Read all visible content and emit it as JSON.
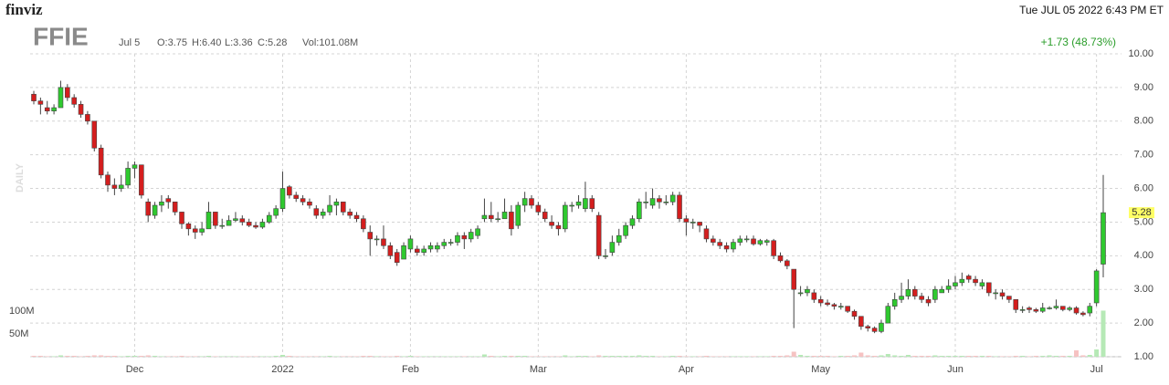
{
  "chart_data": {
    "type": "candlestick",
    "logo": "finviz",
    "ticker": "FFIE",
    "date_label": "Jul 5",
    "ohlc_labels": [
      "O:3.75",
      "H:6.40",
      "L:3.36",
      "C:5.28"
    ],
    "volume_label": "Vol:101.08M",
    "timestamp": "Tue JUL 05 2022 6:43 PM ET",
    "change_label": "+1.73 (48.73%)",
    "period_label": "DAILY",
    "up_color": "#2fc92f",
    "down_color": "#d41e1e",
    "volume_up_color": "#b6e9b6",
    "volume_down_color": "#f6c2c2",
    "grid": true,
    "ylim": [
      1,
      10
    ],
    "yticks": [
      {
        "value": 1,
        "label": "1.00"
      },
      {
        "value": 2,
        "label": "2.00"
      },
      {
        "value": 3,
        "label": "3.00"
      },
      {
        "value": 4,
        "label": "4.00"
      },
      {
        "value": 5,
        "label": "5.00"
      },
      {
        "value": 6,
        "label": "6.00"
      },
      {
        "value": 7,
        "label": "7.00"
      },
      {
        "value": 8,
        "label": "8.00"
      },
      {
        "value": 9,
        "label": "9.00"
      },
      {
        "value": 10,
        "label": "10.00"
      }
    ],
    "volume_ticks": [
      {
        "value": 50,
        "label": "50M"
      },
      {
        "value": 100,
        "label": "100M"
      }
    ],
    "categories": [
      null,
      null,
      null,
      null,
      null,
      null,
      null,
      null,
      null,
      null,
      null,
      null,
      null,
      null,
      null,
      "Dec",
      null,
      null,
      null,
      null,
      null,
      null,
      null,
      null,
      null,
      null,
      null,
      null,
      null,
      null,
      null,
      null,
      null,
      null,
      null,
      null,
      null,
      "2022",
      null,
      null,
      null,
      null,
      null,
      null,
      null,
      null,
      null,
      null,
      null,
      null,
      null,
      null,
      null,
      null,
      null,
      null,
      "Feb",
      null,
      null,
      null,
      null,
      null,
      null,
      null,
      null,
      null,
      null,
      null,
      null,
      null,
      null,
      null,
      null,
      null,
      null,
      "Mar",
      null,
      null,
      null,
      null,
      null,
      null,
      null,
      null,
      null,
      null,
      null,
      null,
      null,
      null,
      null,
      null,
      null,
      null,
      null,
      null,
      null,
      "Apr",
      null,
      null,
      null,
      null,
      null,
      null,
      null,
      null,
      null,
      null,
      null,
      null,
      null,
      null,
      null,
      null,
      null,
      null,
      null,
      "May",
      null,
      null,
      null,
      null,
      null,
      null,
      null,
      null,
      null,
      null,
      null,
      null,
      null,
      null,
      null,
      null,
      null,
      null,
      null,
      "Jun",
      null,
      null,
      null,
      null,
      null,
      null,
      null,
      null,
      null,
      null,
      null,
      null,
      null,
      null,
      null,
      null,
      null,
      null,
      null,
      null,
      "Jul",
      null
    ],
    "ohlc": [
      [
        8.8,
        8.9,
        8.5,
        8.6
      ],
      [
        8.6,
        8.7,
        8.2,
        8.5
      ],
      [
        8.4,
        8.6,
        8.2,
        8.3
      ],
      [
        8.3,
        8.5,
        8.2,
        8.4
      ],
      [
        8.4,
        9.2,
        8.4,
        9.0
      ],
      [
        9.0,
        9.1,
        8.6,
        8.7
      ],
      [
        8.7,
        8.8,
        8.4,
        8.5
      ],
      [
        8.5,
        8.6,
        8.1,
        8.2
      ],
      [
        8.2,
        8.3,
        7.9,
        8.0
      ],
      [
        8.0,
        8.0,
        7.1,
        7.2
      ],
      [
        7.2,
        7.3,
        6.3,
        6.4
      ],
      [
        6.4,
        6.5,
        5.9,
        6.1
      ],
      [
        6.1,
        6.3,
        5.8,
        6.0
      ],
      [
        6.0,
        6.4,
        5.9,
        6.1
      ],
      [
        6.1,
        6.8,
        6.0,
        6.6
      ],
      [
        6.6,
        6.8,
        6.3,
        6.7
      ],
      [
        6.7,
        6.7,
        5.7,
        5.8
      ],
      [
        5.6,
        5.7,
        5.0,
        5.2
      ],
      [
        5.2,
        5.6,
        5.1,
        5.5
      ],
      [
        5.5,
        5.8,
        5.3,
        5.6
      ],
      [
        5.7,
        5.8,
        5.4,
        5.6
      ],
      [
        5.6,
        5.6,
        5.2,
        5.3
      ],
      [
        5.3,
        5.3,
        4.8,
        4.95
      ],
      [
        4.95,
        5.0,
        4.6,
        4.8
      ],
      [
        4.8,
        4.9,
        4.5,
        4.7
      ],
      [
        4.7,
        5.0,
        4.6,
        4.8
      ],
      [
        4.8,
        5.6,
        4.8,
        5.3
      ],
      [
        5.3,
        5.3,
        4.8,
        4.9
      ],
      [
        4.9,
        5.1,
        4.8,
        4.9
      ],
      [
        4.9,
        5.2,
        4.9,
        5.05
      ],
      [
        5.05,
        5.3,
        5.0,
        5.1
      ],
      [
        5.1,
        5.2,
        4.9,
        5.0
      ],
      [
        5.0,
        5.1,
        4.85,
        4.9
      ],
      [
        4.9,
        5.0,
        4.8,
        4.85
      ],
      [
        4.85,
        5.1,
        4.8,
        5.0
      ],
      [
        5.0,
        5.3,
        4.95,
        5.2
      ],
      [
        5.2,
        5.5,
        5.1,
        5.4
      ],
      [
        5.4,
        6.5,
        5.3,
        6.0
      ],
      [
        6.05,
        6.1,
        5.7,
        5.8
      ],
      [
        5.8,
        5.9,
        5.6,
        5.7
      ],
      [
        5.7,
        5.8,
        5.5,
        5.6
      ],
      [
        5.6,
        5.7,
        5.4,
        5.5
      ],
      [
        5.4,
        5.5,
        5.1,
        5.2
      ],
      [
        5.2,
        5.4,
        5.1,
        5.3
      ],
      [
        5.3,
        5.8,
        5.2,
        5.5
      ],
      [
        5.5,
        5.7,
        5.2,
        5.6
      ],
      [
        5.6,
        5.6,
        5.2,
        5.3
      ],
      [
        5.3,
        5.4,
        5.1,
        5.2
      ],
      [
        5.2,
        5.3,
        5.0,
        5.1
      ],
      [
        5.1,
        5.2,
        4.7,
        4.8
      ],
      [
        4.7,
        4.9,
        4.0,
        4.5
      ],
      [
        4.5,
        4.6,
        4.3,
        4.5
      ],
      [
        4.5,
        4.9,
        4.2,
        4.3
      ],
      [
        4.3,
        4.4,
        3.9,
        4.0
      ],
      [
        4.1,
        4.2,
        3.7,
        3.8
      ],
      [
        3.9,
        4.4,
        3.9,
        4.3
      ],
      [
        4.2,
        4.6,
        4.1,
        4.5
      ],
      [
        4.2,
        4.3,
        4.0,
        4.1
      ],
      [
        4.1,
        4.3,
        4.0,
        4.2
      ],
      [
        4.2,
        4.4,
        4.1,
        4.3
      ],
      [
        4.2,
        4.4,
        4.1,
        4.3
      ],
      [
        4.3,
        4.5,
        4.2,
        4.4
      ],
      [
        4.4,
        4.5,
        4.3,
        4.4
      ],
      [
        4.4,
        4.7,
        4.3,
        4.6
      ],
      [
        4.6,
        4.7,
        4.2,
        4.5
      ],
      [
        4.5,
        4.8,
        4.4,
        4.7
      ],
      [
        4.6,
        4.9,
        4.5,
        4.8
      ],
      [
        5.1,
        5.7,
        5.0,
        5.2
      ],
      [
        5.2,
        5.6,
        5.0,
        5.1
      ],
      [
        5.1,
        5.3,
        5.0,
        5.1
      ],
      [
        5.1,
        5.7,
        5.1,
        5.3
      ],
      [
        5.3,
        5.5,
        4.6,
        4.8
      ],
      [
        4.9,
        5.6,
        4.8,
        5.5
      ],
      [
        5.5,
        5.9,
        5.3,
        5.7
      ],
      [
        5.7,
        5.8,
        5.4,
        5.5
      ],
      [
        5.5,
        5.6,
        5.2,
        5.3
      ],
      [
        5.3,
        5.4,
        5.0,
        5.1
      ],
      [
        5.0,
        5.2,
        4.8,
        4.9
      ],
      [
        4.9,
        5.0,
        4.6,
        4.8
      ],
      [
        4.8,
        5.6,
        4.7,
        5.5
      ],
      [
        5.5,
        5.6,
        5.3,
        5.5
      ],
      [
        5.5,
        5.8,
        5.4,
        5.6
      ],
      [
        5.4,
        6.2,
        5.3,
        5.7
      ],
      [
        5.7,
        5.8,
        5.3,
        5.4
      ],
      [
        5.2,
        5.3,
        3.9,
        4.0
      ],
      [
        4.0,
        4.2,
        3.9,
        4.0
      ],
      [
        4.1,
        4.6,
        4.0,
        4.4
      ],
      [
        4.4,
        4.8,
        4.3,
        4.6
      ],
      [
        4.6,
        5.0,
        4.5,
        4.9
      ],
      [
        4.9,
        5.2,
        4.8,
        5.1
      ],
      [
        5.1,
        5.7,
        5.0,
        5.6
      ],
      [
        5.6,
        5.9,
        5.4,
        5.6
      ],
      [
        5.5,
        6.0,
        5.4,
        5.7
      ],
      [
        5.7,
        5.8,
        5.4,
        5.6
      ],
      [
        5.6,
        5.8,
        5.5,
        5.6
      ],
      [
        5.6,
        5.9,
        5.5,
        5.8
      ],
      [
        5.8,
        5.9,
        5.0,
        5.1
      ],
      [
        5.1,
        5.2,
        4.6,
        5.0
      ],
      [
        5.0,
        5.1,
        4.8,
        5.0
      ],
      [
        5.0,
        5.0,
        4.7,
        4.9
      ],
      [
        4.8,
        4.9,
        4.4,
        4.5
      ],
      [
        4.5,
        4.6,
        4.3,
        4.4
      ],
      [
        4.4,
        4.5,
        4.2,
        4.3
      ],
      [
        4.3,
        4.4,
        4.1,
        4.2
      ],
      [
        4.2,
        4.5,
        4.1,
        4.4
      ],
      [
        4.4,
        4.6,
        4.3,
        4.5
      ],
      [
        4.5,
        4.6,
        4.4,
        4.5
      ],
      [
        4.5,
        4.6,
        4.3,
        4.35
      ],
      [
        4.35,
        4.5,
        4.3,
        4.45
      ],
      [
        4.4,
        4.5,
        4.3,
        4.45
      ],
      [
        4.45,
        4.5,
        3.9,
        4.0
      ],
      [
        4.0,
        4.1,
        3.8,
        3.85
      ],
      [
        3.85,
        3.9,
        3.6,
        3.7
      ],
      [
        3.6,
        3.6,
        1.85,
        3.0
      ],
      [
        2.9,
        3.1,
        2.8,
        2.9
      ],
      [
        2.9,
        3.1,
        2.8,
        3.0
      ],
      [
        2.9,
        3.0,
        2.6,
        2.7
      ],
      [
        2.7,
        2.8,
        2.5,
        2.6
      ],
      [
        2.6,
        2.7,
        2.5,
        2.55
      ],
      [
        2.55,
        2.6,
        2.4,
        2.5
      ],
      [
        2.5,
        2.6,
        2.4,
        2.5
      ],
      [
        2.5,
        2.5,
        2.3,
        2.35
      ],
      [
        2.35,
        2.4,
        2.1,
        2.2
      ],
      [
        2.2,
        2.2,
        1.8,
        1.9
      ],
      [
        1.9,
        1.95,
        1.75,
        1.85
      ],
      [
        1.85,
        1.9,
        1.7,
        1.75
      ],
      [
        1.75,
        2.1,
        1.7,
        2.0
      ],
      [
        2.0,
        2.6,
        2.0,
        2.5
      ],
      [
        2.5,
        2.9,
        2.4,
        2.7
      ],
      [
        2.7,
        3.2,
        2.6,
        2.8
      ],
      [
        2.8,
        3.3,
        2.7,
        3.0
      ],
      [
        3.0,
        3.1,
        2.7,
        2.8
      ],
      [
        2.8,
        2.9,
        2.6,
        2.7
      ],
      [
        2.7,
        2.8,
        2.5,
        2.6
      ],
      [
        2.7,
        3.1,
        2.6,
        3.0
      ],
      [
        2.9,
        3.1,
        2.9,
        3.0
      ],
      [
        3.0,
        3.3,
        2.9,
        3.1
      ],
      [
        3.1,
        3.4,
        3.0,
        3.2
      ],
      [
        3.2,
        3.5,
        3.1,
        3.3
      ],
      [
        3.4,
        3.45,
        3.2,
        3.3
      ],
      [
        3.3,
        3.4,
        3.1,
        3.2
      ],
      [
        3.1,
        3.3,
        3.0,
        3.2
      ],
      [
        3.2,
        3.2,
        2.8,
        2.9
      ],
      [
        2.9,
        3.0,
        2.7,
        2.9
      ],
      [
        2.9,
        3.0,
        2.7,
        2.8
      ],
      [
        2.8,
        2.8,
        2.6,
        2.7
      ],
      [
        2.7,
        2.7,
        2.3,
        2.4
      ],
      [
        2.4,
        2.5,
        2.3,
        2.4
      ],
      [
        2.45,
        2.5,
        2.3,
        2.4
      ],
      [
        2.4,
        2.45,
        2.3,
        2.35
      ],
      [
        2.35,
        2.6,
        2.3,
        2.45
      ],
      [
        2.45,
        2.5,
        2.4,
        2.45
      ],
      [
        2.45,
        2.7,
        2.4,
        2.5
      ],
      [
        2.5,
        2.5,
        2.35,
        2.4
      ],
      [
        2.4,
        2.5,
        2.35,
        2.45
      ],
      [
        2.45,
        2.5,
        2.25,
        2.3
      ],
      [
        2.3,
        2.35,
        2.2,
        2.25
      ],
      [
        2.3,
        2.6,
        2.2,
        2.5
      ],
      [
        2.6,
        3.6,
        2.5,
        3.55
      ],
      [
        3.75,
        6.4,
        3.36,
        5.28
      ]
    ],
    "volumes": [
      2,
      2,
      1,
      1,
      3,
      2,
      2,
      1,
      2,
      3,
      3,
      2,
      2,
      1,
      2,
      2,
      2,
      3,
      2,
      1,
      1,
      1,
      2,
      1,
      1,
      1,
      2,
      1,
      1,
      1,
      1,
      1,
      1,
      1,
      1,
      1,
      2,
      4,
      2,
      1,
      1,
      1,
      1,
      1,
      2,
      1,
      1,
      1,
      1,
      2,
      2,
      1,
      1,
      1,
      2,
      1,
      2,
      1,
      1,
      1,
      1,
      1,
      1,
      1,
      1,
      1,
      1,
      5,
      2,
      1,
      2,
      2,
      2,
      2,
      1,
      1,
      1,
      1,
      1,
      3,
      1,
      2,
      2,
      1,
      3,
      2,
      2,
      2,
      2,
      2,
      3,
      2,
      2,
      1,
      1,
      2,
      2,
      1,
      1,
      1,
      2,
      1,
      1,
      1,
      1,
      1,
      1,
      1,
      1,
      1,
      2,
      2,
      3,
      11,
      4,
      2,
      2,
      2,
      2,
      1,
      2,
      2,
      3,
      9,
      3,
      2,
      3,
      6,
      3,
      2,
      4,
      2,
      2,
      2,
      3,
      2,
      2,
      2,
      2,
      2,
      2,
      2,
      2,
      1,
      1,
      1,
      2,
      2,
      1,
      2,
      2,
      3,
      2,
      2,
      2,
      14,
      3,
      4,
      16,
      101.08
    ]
  }
}
